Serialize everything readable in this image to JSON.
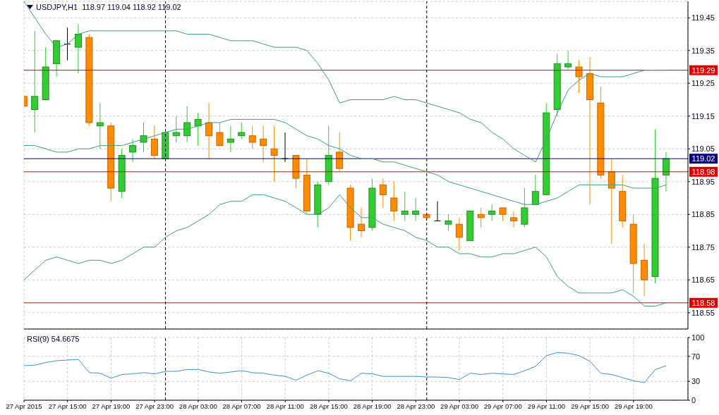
{
  "chart_data": [
    {
      "type": "candlestick",
      "title": "USDJPY,H1  118.97 119.04 118.92 119.02",
      "x": [
        "2015-04-27T11:00",
        "2015-04-27T12:00",
        "2015-04-27T13:00",
        "2015-04-27T14:00",
        "2015-04-27T15:00",
        "2015-04-27T16:00",
        "2015-04-27T17:00",
        "2015-04-27T18:00",
        "2015-04-27T19:00",
        "2015-04-27T20:00",
        "2015-04-27T21:00",
        "2015-04-27T22:00",
        "2015-04-27T23:00",
        "2015-04-28T00:00",
        "2015-04-28T01:00",
        "2015-04-28T02:00",
        "2015-04-28T03:00",
        "2015-04-28T04:00",
        "2015-04-28T05:00",
        "2015-04-28T06:00",
        "2015-04-28T07:00",
        "2015-04-28T08:00",
        "2015-04-28T09:00",
        "2015-04-28T10:00",
        "2015-04-28T11:00",
        "2015-04-28T12:00",
        "2015-04-28T13:00",
        "2015-04-28T14:00",
        "2015-04-28T15:00",
        "2015-04-28T16:00",
        "2015-04-28T17:00",
        "2015-04-28T18:00",
        "2015-04-28T19:00",
        "2015-04-28T20:00",
        "2015-04-28T21:00",
        "2015-04-28T22:00",
        "2015-04-28T23:00",
        "2015-04-29T00:00",
        "2015-04-29T01:00",
        "2015-04-29T02:00",
        "2015-04-29T03:00",
        "2015-04-29T04:00",
        "2015-04-29T05:00",
        "2015-04-29T06:00",
        "2015-04-29T07:00",
        "2015-04-29T08:00",
        "2015-04-29T09:00",
        "2015-04-29T10:00",
        "2015-04-29T11:00",
        "2015-04-29T12:00",
        "2015-04-29T13:00",
        "2015-04-29T14:00",
        "2015-04-29T15:00",
        "2015-04-29T16:00",
        "2015-04-29T17:00",
        "2015-04-29T18:00",
        "2015-04-29T19:00",
        "2015-04-29T20:00",
        "2015-04-29T21:00",
        "2015-04-29T22:00"
      ],
      "ohlc": [
        [
          119.21,
          119.21,
          119.18,
          119.18
        ],
        [
          119.17,
          119.41,
          119.1,
          119.21
        ],
        [
          119.2,
          119.36,
          119.2,
          119.3
        ],
        [
          119.31,
          119.38,
          119.27,
          119.38
        ],
        [
          119.37,
          119.42,
          119.32,
          119.37
        ],
        [
          119.36,
          119.43,
          119.28,
          119.4
        ],
        [
          119.39,
          119.4,
          119.12,
          119.13
        ],
        [
          119.12,
          119.19,
          119.05,
          119.13
        ],
        [
          119.12,
          119.13,
          118.89,
          118.93
        ],
        [
          118.92,
          119.05,
          118.9,
          119.03
        ],
        [
          119.04,
          119.08,
          119.01,
          119.06
        ],
        [
          119.07,
          119.13,
          119.04,
          119.09
        ],
        [
          119.08,
          119.12,
          119.02,
          119.03
        ],
        [
          119.02,
          119.1,
          119.02,
          119.1
        ],
        [
          119.09,
          119.15,
          119.07,
          119.1
        ],
        [
          119.09,
          119.18,
          119.07,
          119.13
        ],
        [
          119.12,
          119.16,
          119.06,
          119.14
        ],
        [
          119.13,
          119.19,
          119.02,
          119.09
        ],
        [
          119.1,
          119.13,
          119.06,
          119.06
        ],
        [
          119.07,
          119.12,
          119.04,
          119.08
        ],
        [
          119.09,
          119.13,
          119.08,
          119.1
        ],
        [
          119.09,
          119.12,
          119.05,
          119.07
        ],
        [
          119.08,
          119.12,
          119.01,
          119.06
        ],
        [
          119.05,
          119.12,
          118.95,
          119.03
        ],
        [
          119.02,
          119.1,
          119.01,
          119.02
        ],
        [
          119.03,
          119.03,
          118.93,
          118.96
        ],
        [
          118.97,
          119.02,
          118.85,
          118.86
        ],
        [
          118.85,
          118.95,
          118.81,
          118.94
        ],
        [
          118.95,
          119.12,
          118.94,
          119.03
        ],
        [
          119.04,
          119.1,
          118.98,
          118.99
        ],
        [
          118.93,
          118.94,
          118.77,
          118.81
        ],
        [
          118.82,
          118.87,
          118.78,
          118.8
        ],
        [
          118.81,
          118.96,
          118.8,
          118.93
        ],
        [
          118.94,
          118.96,
          118.87,
          118.91
        ],
        [
          118.9,
          118.95,
          118.83,
          118.86
        ],
        [
          118.85,
          118.92,
          118.83,
          118.86
        ],
        [
          118.85,
          118.9,
          118.83,
          118.86
        ],
        [
          118.85,
          118.85,
          118.83,
          118.84
        ],
        [
          118.83,
          118.89,
          118.83,
          118.83
        ],
        [
          118.82,
          118.85,
          118.8,
          118.83
        ],
        [
          118.82,
          118.84,
          118.74,
          118.78
        ],
        [
          118.77,
          118.86,
          118.77,
          118.86
        ],
        [
          118.85,
          118.87,
          118.81,
          118.84
        ],
        [
          118.85,
          118.88,
          118.83,
          118.86
        ],
        [
          118.87,
          118.87,
          118.83,
          118.85
        ],
        [
          118.84,
          118.86,
          118.81,
          118.83
        ],
        [
          118.82,
          118.93,
          118.81,
          118.87
        ],
        [
          118.88,
          118.97,
          118.88,
          118.92
        ],
        [
          118.91,
          119.19,
          118.91,
          119.16
        ],
        [
          119.17,
          119.34,
          119.15,
          119.31
        ],
        [
          119.3,
          119.35,
          119.29,
          119.31
        ],
        [
          119.3,
          119.32,
          119.22,
          119.27
        ],
        [
          119.28,
          119.33,
          118.88,
          119.2
        ],
        [
          119.19,
          119.24,
          118.96,
          118.97
        ],
        [
          118.98,
          119.02,
          118.76,
          118.93
        ],
        [
          118.92,
          118.97,
          118.81,
          118.83
        ],
        [
          118.82,
          118.85,
          118.61,
          118.7
        ],
        [
          118.71,
          118.76,
          118.6,
          118.65
        ],
        [
          118.66,
          119.11,
          118.64,
          118.96
        ],
        [
          118.97,
          119.04,
          118.92,
          119.02
        ]
      ],
      "colors": [
        "#ff8c00",
        "#32cd32",
        "#32cd32",
        "#32cd32",
        "#000000",
        "#32cd32",
        "#ff8c00",
        "#32cd32",
        "#ff8c00",
        "#32cd32",
        "#32cd32",
        "#32cd32",
        "#ff8c00",
        "#32cd32",
        "#32cd32",
        "#32cd32",
        "#32cd32",
        "#ff8c00",
        "#ff8c00",
        "#32cd32",
        "#32cd32",
        "#ff8c00",
        "#ff8c00",
        "#ff8c00",
        "#000000",
        "#ff8c00",
        "#ff8c00",
        "#32cd32",
        "#32cd32",
        "#ff8c00",
        "#ff8c00",
        "#ff8c00",
        "#32cd32",
        "#ff8c00",
        "#ff8c00",
        "#32cd32",
        "#32cd32",
        "#ff8c00",
        "#000000",
        "#32cd32",
        "#ff8c00",
        "#32cd32",
        "#ff8c00",
        "#32cd32",
        "#ff8c00",
        "#ff8c00",
        "#32cd32",
        "#32cd32",
        "#32cd32",
        "#32cd32",
        "#32cd32",
        "#ff8c00",
        "#ff8c00",
        "#ff8c00",
        "#ff8c00",
        "#ff8c00",
        "#ff8c00",
        "#ff8c00",
        "#32cd32",
        "#32cd32"
      ],
      "series": [
        {
          "type": "line",
          "color": "#3c9f78",
          "values": [
            119.5,
            119.45,
            119.4,
            119.36,
            119.37,
            119.4,
            119.41,
            119.41,
            119.41,
            119.41,
            119.41,
            119.41,
            119.41,
            119.41,
            119.41,
            119.4,
            119.4,
            119.4,
            119.39,
            119.38,
            119.38,
            119.38,
            119.37,
            119.36,
            119.36,
            119.36,
            119.35,
            119.31,
            119.26,
            119.19,
            119.2,
            119.2,
            119.2,
            119.2,
            119.21,
            119.2,
            119.2,
            119.19,
            119.18,
            119.17,
            119.16,
            119.14,
            119.13,
            119.1,
            119.08,
            119.05,
            119.03,
            119.01,
            119.08,
            119.16,
            119.23,
            119.26,
            119.28,
            119.27,
            119.27,
            119.27,
            119.28,
            119.29,
            119.29,
            119.29
          ]
        },
        {
          "type": "line",
          "color": "#3c9f78",
          "values": [
            119.06,
            119.06,
            119.05,
            119.04,
            119.04,
            119.05,
            119.05,
            119.06,
            119.06,
            119.06,
            119.07,
            119.08,
            119.09,
            119.1,
            119.11,
            119.11,
            119.12,
            119.13,
            119.13,
            119.14,
            119.14,
            119.14,
            119.14,
            119.14,
            119.13,
            119.11,
            119.09,
            119.08,
            119.06,
            119.05,
            119.03,
            119.02,
            119.02,
            119.01,
            119.01,
            119.0,
            118.99,
            118.98,
            118.97,
            118.95,
            118.94,
            118.93,
            118.92,
            118.91,
            118.9,
            118.89,
            118.88,
            118.88,
            118.89,
            118.9,
            118.92,
            118.94,
            118.94,
            118.94,
            118.94,
            118.94,
            118.93,
            118.93,
            118.93,
            118.94
          ]
        },
        {
          "type": "line",
          "color": "#3c9f78",
          "values": [
            118.65,
            118.68,
            118.71,
            118.72,
            118.71,
            118.7,
            118.71,
            118.71,
            118.7,
            118.71,
            118.73,
            118.75,
            118.75,
            118.78,
            118.8,
            118.81,
            118.83,
            118.85,
            118.88,
            118.89,
            118.89,
            118.91,
            118.91,
            118.9,
            118.89,
            118.87,
            118.85,
            118.85,
            118.87,
            118.91,
            118.87,
            118.84,
            118.84,
            118.82,
            118.81,
            118.8,
            118.78,
            118.77,
            118.75,
            118.75,
            118.73,
            118.73,
            118.72,
            118.72,
            118.73,
            118.73,
            118.74,
            118.75,
            118.72,
            118.66,
            118.63,
            118.61,
            118.61,
            118.61,
            118.61,
            118.62,
            118.6,
            118.57,
            118.57,
            118.58
          ]
        }
      ],
      "xlim": [
        "2015-04-27T11:00",
        "2015-04-30T00:00"
      ],
      "xticks": [
        {
          "value": "2015-04-27T11:00",
          "label": null
        },
        {
          "value": "2015-04-27T15:00",
          "label": null
        },
        {
          "value": "2015-04-27T19:00",
          "label": null
        },
        {
          "value": "2015-04-27T23:00",
          "label": null
        },
        {
          "value": "2015-04-28T03:00",
          "label": null
        },
        {
          "value": "2015-04-28T07:00",
          "label": null
        },
        {
          "value": "2015-04-28T11:00",
          "label": null
        },
        {
          "value": "2015-04-28T15:00",
          "label": null
        },
        {
          "value": "2015-04-28T19:00",
          "label": null
        },
        {
          "value": "2015-04-28T23:00",
          "label": null
        },
        {
          "value": "2015-04-29T03:00",
          "label": null
        },
        {
          "value": "2015-04-29T07:00",
          "label": null
        },
        {
          "value": "2015-04-29T11:00",
          "label": null
        },
        {
          "value": "2015-04-29T15:00",
          "label": null
        },
        {
          "value": "2015-04-29T19:00",
          "label": null
        }
      ],
      "ylim": [
        118.5,
        119.5
      ],
      "yticks": [
        118.55,
        118.65,
        118.75,
        118.85,
        118.95,
        119.05,
        119.15,
        119.25,
        119.35,
        119.45
      ],
      "tick_labels": "y",
      "grid": true,
      "ref_lines": [
        {
          "axis": "y",
          "value": 119.29,
          "label": "119.29",
          "color": "#e00000"
        },
        {
          "axis": "y",
          "value": 118.98,
          "label": "118.98",
          "color": "#e00000"
        },
        {
          "axis": "y",
          "value": 118.58,
          "label": "118.58",
          "color": "#e00000"
        },
        {
          "axis": "y",
          "value": 119.02,
          "label": "119.02",
          "color": "#000080"
        },
        {
          "axis": "x",
          "value": "2015-04-28T00:00",
          "color": "#000000",
          "line_style": "dashed"
        },
        {
          "axis": "x",
          "value": "2015-04-29T00:00",
          "color": "#000000",
          "line_style": "dashed"
        }
      ]
    },
    {
      "type": "line",
      "title": "RSI(9) 54.6675",
      "color": "#3d8fd0",
      "x": [
        "2015-04-27T11:00",
        "2015-04-27T12:00",
        "2015-04-27T13:00",
        "2015-04-27T14:00",
        "2015-04-27T15:00",
        "2015-04-27T16:00",
        "2015-04-27T17:00",
        "2015-04-27T18:00",
        "2015-04-27T19:00",
        "2015-04-27T20:00",
        "2015-04-27T21:00",
        "2015-04-27T22:00",
        "2015-04-27T23:00",
        "2015-04-28T00:00",
        "2015-04-28T01:00",
        "2015-04-28T02:00",
        "2015-04-28T03:00",
        "2015-04-28T04:00",
        "2015-04-28T05:00",
        "2015-04-28T06:00",
        "2015-04-28T07:00",
        "2015-04-28T08:00",
        "2015-04-28T09:00",
        "2015-04-28T10:00",
        "2015-04-28T11:00",
        "2015-04-28T12:00",
        "2015-04-28T13:00",
        "2015-04-28T14:00",
        "2015-04-28T15:00",
        "2015-04-28T16:00",
        "2015-04-28T17:00",
        "2015-04-28T18:00",
        "2015-04-28T19:00",
        "2015-04-28T20:00",
        "2015-04-28T21:00",
        "2015-04-28T22:00",
        "2015-04-28T23:00",
        "2015-04-29T00:00",
        "2015-04-29T01:00",
        "2015-04-29T02:00",
        "2015-04-29T03:00",
        "2015-04-29T04:00",
        "2015-04-29T05:00",
        "2015-04-29T06:00",
        "2015-04-29T07:00",
        "2015-04-29T08:00",
        "2015-04-29T09:00",
        "2015-04-29T10:00",
        "2015-04-29T11:00",
        "2015-04-29T12:00",
        "2015-04-29T13:00",
        "2015-04-29T14:00",
        "2015-04-29T15:00",
        "2015-04-29T16:00",
        "2015-04-29T17:00",
        "2015-04-29T18:00",
        "2015-04-29T19:00",
        "2015-04-29T20:00",
        "2015-04-29T21:00",
        "2015-04-29T22:00"
      ],
      "values": [
        55,
        56,
        60,
        63,
        64,
        65,
        44,
        43,
        35,
        41,
        42,
        44,
        42,
        46,
        46,
        49,
        49,
        45,
        43,
        45,
        47,
        44,
        43,
        40,
        38,
        32,
        40,
        47,
        43,
        34,
        31,
        43,
        42,
        38,
        38,
        38,
        38,
        37,
        37,
        36,
        33,
        43,
        41,
        43,
        42,
        41,
        47,
        54,
        71,
        76,
        75,
        71,
        62,
        43,
        41,
        36,
        31,
        28,
        49,
        55
      ],
      "xlim": [
        "2015-04-27T11:00",
        "2015-04-30T00:00"
      ],
      "xticks": [
        {
          "value": "2015-04-27T11:00",
          "label": "27 Apr 2015"
        },
        {
          "value": "2015-04-27T15:00",
          "label": "27 Apr 15:00"
        },
        {
          "value": "2015-04-27T19:00",
          "label": "27 Apr 19:00"
        },
        {
          "value": "2015-04-27T23:00",
          "label": "27 Apr 23:00"
        },
        {
          "value": "2015-04-28T03:00",
          "label": "28 Apr 03:00"
        },
        {
          "value": "2015-04-28T07:00",
          "label": "28 Apr 07:00"
        },
        {
          "value": "2015-04-28T11:00",
          "label": "28 Apr 11:00"
        },
        {
          "value": "2015-04-28T15:00",
          "label": "28 Apr 15:00"
        },
        {
          "value": "2015-04-28T19:00",
          "label": "28 Apr 19:00"
        },
        {
          "value": "2015-04-28T23:00",
          "label": "28 Apr 23:00"
        },
        {
          "value": "2015-04-29T03:00",
          "label": "29 Apr 03:00"
        },
        {
          "value": "2015-04-29T07:00",
          "label": "29 Apr 07:00"
        },
        {
          "value": "2015-04-29T11:00",
          "label": "29 Apr 11:00"
        },
        {
          "value": "2015-04-29T15:00",
          "label": "29 Apr 15:00"
        },
        {
          "value": "2015-04-29T19:00",
          "label": "29 Apr 19:00"
        }
      ],
      "ylim": [
        0,
        100
      ],
      "yticks": [
        0,
        30,
        70,
        100
      ],
      "grid": true,
      "ref_lines": [
        {
          "axis": "x",
          "value": "2015-04-28T00:00",
          "color": "#000000",
          "line_style": "dashed"
        },
        {
          "axis": "x",
          "value": "2015-04-29T00:00",
          "color": "#000000",
          "line_style": "dashed"
        }
      ]
    }
  ]
}
